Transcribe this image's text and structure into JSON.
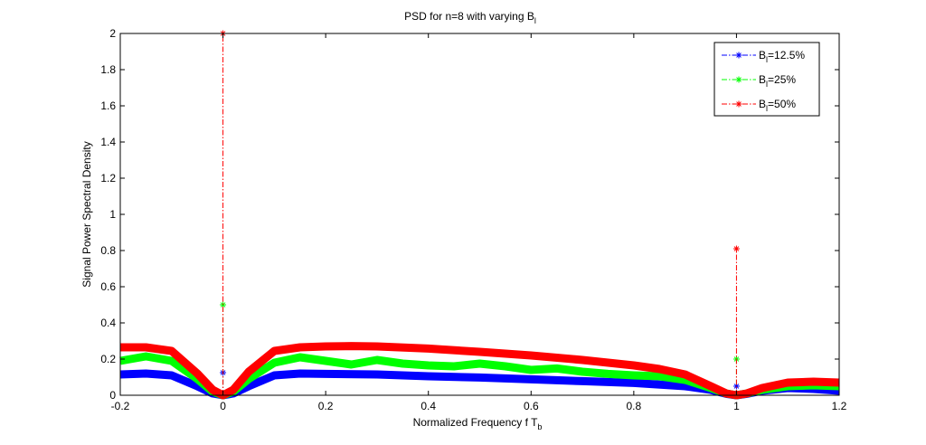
{
  "chart_data": {
    "type": "line",
    "title": "PSD for n=8 with varying B",
    "title_subscript": "l",
    "xlabel": "Normalized Frequency f T",
    "xlabel_subscript": "b",
    "ylabel": "Signal Power Spectral Density",
    "xlim": [
      -0.2,
      1.2
    ],
    "ylim": [
      0,
      2
    ],
    "xticks": [
      "-0.2",
      "0",
      "0.2",
      "0.4",
      "0.6",
      "0.8",
      "1",
      "1.2"
    ],
    "yticks": [
      "0",
      "0.2",
      "0.4",
      "0.6",
      "0.8",
      "1",
      "1.2",
      "1.4",
      "1.6",
      "1.8",
      "2"
    ],
    "grid": false,
    "legend_position": "top-right",
    "series": [
      {
        "name_prefix": "B",
        "name_subscript": "l",
        "name_suffix": "=12.5%",
        "color": "#0000ff",
        "continuous": {
          "x": [
            -0.2,
            -0.15,
            -0.1,
            -0.05,
            -0.02,
            0,
            0.02,
            0.05,
            0.1,
            0.15,
            0.2,
            0.3,
            0.4,
            0.5,
            0.6,
            0.7,
            0.8,
            0.9,
            0.95,
            0.98,
            1.0,
            1.02,
            1.05,
            1.1,
            1.15,
            1.2
          ],
          "y": [
            0.115,
            0.12,
            0.11,
            0.05,
            0.01,
            0.0,
            0.01,
            0.05,
            0.11,
            0.12,
            0.118,
            0.115,
            0.105,
            0.098,
            0.088,
            0.078,
            0.068,
            0.05,
            0.03,
            0.008,
            0.0,
            0.008,
            0.025,
            0.04,
            0.035,
            0.025
          ]
        },
        "impulses": [
          {
            "x": 0,
            "y": 0.125
          },
          {
            "x": 1,
            "y": 0.05
          }
        ]
      },
      {
        "name_prefix": "B",
        "name_subscript": "l",
        "name_suffix": "=25%",
        "color": "#00ff00",
        "continuous": {
          "x": [
            -0.2,
            -0.15,
            -0.1,
            -0.05,
            -0.02,
            0,
            0.02,
            0.05,
            0.1,
            0.15,
            0.2,
            0.25,
            0.3,
            0.35,
            0.4,
            0.45,
            0.5,
            0.55,
            0.6,
            0.65,
            0.7,
            0.75,
            0.8,
            0.85,
            0.9,
            0.95,
            0.98,
            1.0,
            1.02,
            1.05,
            1.1,
            1.15,
            1.2
          ],
          "y": [
            0.19,
            0.215,
            0.19,
            0.09,
            0.02,
            0.0,
            0.02,
            0.09,
            0.18,
            0.21,
            0.19,
            0.17,
            0.195,
            0.175,
            0.165,
            0.16,
            0.175,
            0.16,
            0.14,
            0.148,
            0.13,
            0.118,
            0.11,
            0.105,
            0.085,
            0.04,
            0.01,
            0.0,
            0.01,
            0.03,
            0.05,
            0.055,
            0.05
          ]
        },
        "impulses": [
          {
            "x": 0,
            "y": 0.5
          },
          {
            "x": 1,
            "y": 0.2
          }
        ]
      },
      {
        "name_prefix": "B",
        "name_subscript": "l",
        "name_suffix": "=50%",
        "color": "#ff0000",
        "continuous": {
          "x": [
            -0.2,
            -0.15,
            -0.1,
            -0.05,
            -0.02,
            0,
            0.02,
            0.05,
            0.1,
            0.15,
            0.2,
            0.25,
            0.3,
            0.4,
            0.5,
            0.6,
            0.7,
            0.8,
            0.85,
            0.9,
            0.95,
            0.98,
            1.0,
            1.02,
            1.05,
            1.1,
            1.15,
            1.2
          ],
          "y": [
            0.265,
            0.265,
            0.245,
            0.12,
            0.03,
            0.0,
            0.03,
            0.13,
            0.245,
            0.265,
            0.27,
            0.272,
            0.27,
            0.258,
            0.24,
            0.22,
            0.195,
            0.165,
            0.145,
            0.115,
            0.05,
            0.01,
            0.0,
            0.01,
            0.04,
            0.07,
            0.075,
            0.07
          ]
        },
        "impulses": [
          {
            "x": 0,
            "y": 2.0
          },
          {
            "x": 1,
            "y": 0.81
          }
        ]
      }
    ]
  }
}
